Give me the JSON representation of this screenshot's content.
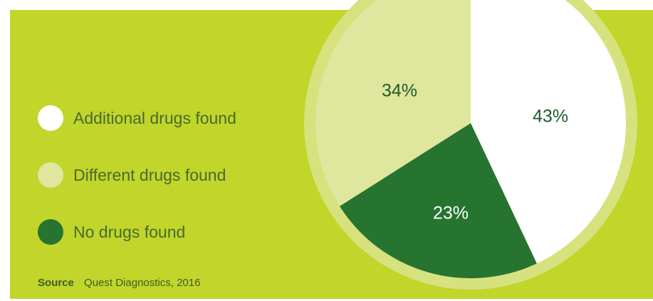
{
  "colors": {
    "background": "#c1d52a",
    "pie_rim": "#d6e27e",
    "additional": "#ffffff",
    "different": "#dfe69d",
    "none": "#267430",
    "label_dark": "#1f5b2c",
    "label_light": "#ffffff"
  },
  "chart_data": {
    "type": "pie",
    "title": "",
    "slices": [
      {
        "name": "Additional drugs found",
        "value": 43,
        "label": "43%",
        "color": "#ffffff"
      },
      {
        "name": "No drugs found",
        "value": 23,
        "label": "23%",
        "color": "#267430"
      },
      {
        "name": "Different drugs found",
        "value": 34,
        "label": "34%",
        "color": "#dfe69d"
      }
    ],
    "legend": {
      "placement": "left",
      "items": [
        {
          "label": "Additional drugs found",
          "color": "#ffffff"
        },
        {
          "label": "Different drugs found",
          "color": "#dfe69d"
        },
        {
          "label": "No drugs found",
          "color": "#267430"
        }
      ]
    }
  },
  "source": {
    "key": "Source",
    "text": "Quest Diagnostics, 2016"
  }
}
